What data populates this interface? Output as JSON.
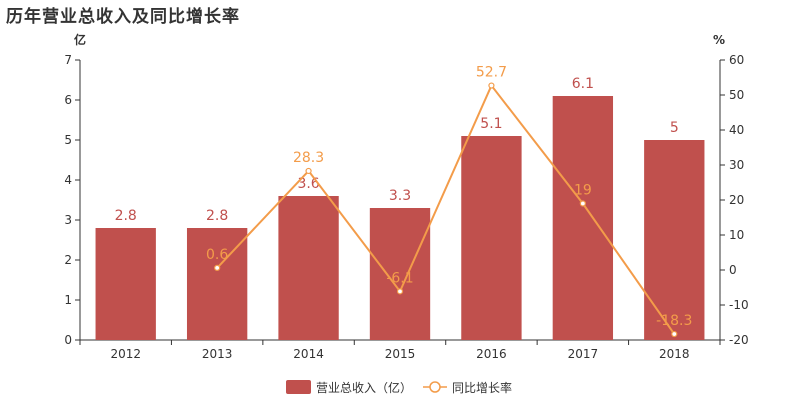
{
  "chart_data": {
    "type": "bar",
    "title": "历年营业总收入及同比增长率",
    "categories": [
      "2012",
      "2013",
      "2014",
      "2015",
      "2016",
      "2017",
      "2018"
    ],
    "left_axis": {
      "unit": "亿",
      "ylim": [
        0,
        7
      ],
      "ticks": [
        "0",
        "1",
        "2",
        "3",
        "4",
        "5",
        "6",
        "7"
      ]
    },
    "right_axis": {
      "unit": "%",
      "ylim": [
        -20,
        60
      ],
      "ticks": [
        "-20",
        "-10",
        "0",
        "10",
        "20",
        "30",
        "40",
        "50",
        "60"
      ]
    },
    "series": [
      {
        "name": "营业总收入（亿）",
        "type": "bar",
        "axis": "left",
        "color": "#c0504d",
        "values": [
          2.8,
          2.8,
          3.6,
          3.3,
          5.1,
          6.1,
          5
        ],
        "labels": [
          "2.8",
          "2.8",
          "3.6",
          "3.3",
          "5.1",
          "6.1",
          "5"
        ]
      },
      {
        "name": "同比增长率",
        "type": "line",
        "axis": "right",
        "color": "#f39c4a",
        "values": [
          null,
          0.6,
          28.3,
          -6.1,
          52.7,
          19,
          -18.3
        ],
        "labels": [
          "",
          "0.6",
          "28.3",
          "-6.1",
          "52.7",
          "19",
          "-18.3"
        ]
      }
    ],
    "grid": false,
    "legend_position": "bottom"
  }
}
